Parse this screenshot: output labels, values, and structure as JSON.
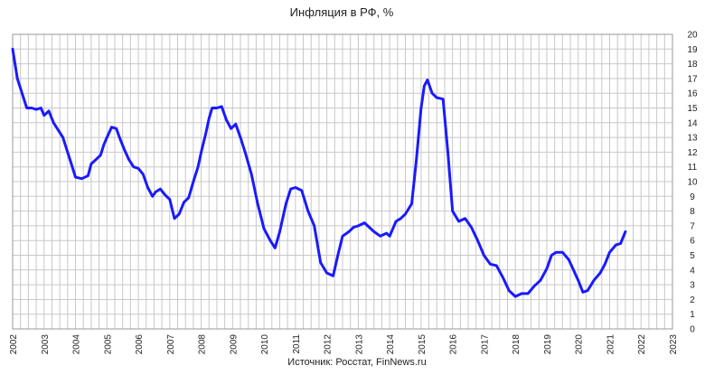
{
  "chart_data": {
    "type": "line",
    "title": "Инфляция в РФ, %",
    "source": "Источник: Росстат, FinNews.ru",
    "xlabel": "",
    "ylabel": "",
    "xlim": [
      2002,
      2023
    ],
    "ylim": [
      0,
      20
    ],
    "grid": true,
    "y_axis_side": "right",
    "x_ticks": [
      "2002",
      "2003",
      "2004",
      "2005",
      "2006",
      "2007",
      "2008",
      "2009",
      "2010",
      "2011",
      "2012",
      "2013",
      "2014",
      "2015",
      "2016",
      "2017",
      "2018",
      "2019",
      "2020",
      "2021",
      "2022",
      "2023"
    ],
    "y_ticks": [
      0,
      1,
      2,
      3,
      4,
      5,
      6,
      7,
      8,
      9,
      10,
      11,
      12,
      13,
      14,
      15,
      16,
      17,
      18,
      19,
      20
    ],
    "colors": {
      "series": "#1a1aff",
      "grid": "#c8c8c8"
    },
    "series": [
      {
        "x": [
          2002.0,
          2002.15,
          2002.3,
          2002.45,
          2002.6,
          2002.75,
          2002.9,
          2003.0,
          2003.15,
          2003.3,
          2003.45,
          2003.6,
          2003.75,
          2003.9,
          2004.0,
          2004.2,
          2004.4,
          2004.5,
          2004.65,
          2004.8,
          2004.9,
          2005.0,
          2005.15,
          2005.3,
          2005.4,
          2005.55,
          2005.7,
          2005.85,
          2006.0,
          2006.15,
          2006.3,
          2006.45,
          2006.55,
          2006.7,
          2006.85,
          2007.0,
          2007.15,
          2007.3,
          2007.45,
          2007.6,
          2007.75,
          2007.9,
          2008.0,
          2008.15,
          2008.25,
          2008.35,
          2008.5,
          2008.65,
          2008.8,
          2008.95,
          2009.1,
          2009.25,
          2009.4,
          2009.6,
          2009.8,
          2010.0,
          2010.2,
          2010.35,
          2010.5,
          2010.7,
          2010.85,
          2011.0,
          2011.2,
          2011.4,
          2011.6,
          2011.8,
          2012.0,
          2012.2,
          2012.35,
          2012.5,
          2012.7,
          2012.85,
          2013.0,
          2013.2,
          2013.35,
          2013.5,
          2013.7,
          2013.9,
          2014.0,
          2014.2,
          2014.35,
          2014.5,
          2014.7,
          2014.85,
          2015.0,
          2015.1,
          2015.2,
          2015.35,
          2015.5,
          2015.7,
          2015.85,
          2016.0,
          2016.2,
          2016.4,
          2016.6,
          2016.8,
          2017.0,
          2017.2,
          2017.4,
          2017.6,
          2017.8,
          2018.0,
          2018.2,
          2018.4,
          2018.6,
          2018.8,
          2019.0,
          2019.15,
          2019.3,
          2019.5,
          2019.7,
          2019.85,
          2020.0,
          2020.15,
          2020.3,
          2020.5,
          2020.7,
          2020.85,
          2021.0,
          2021.2,
          2021.35,
          2021.5
        ],
        "values": [
          19.0,
          17.0,
          16.0,
          15.0,
          15.0,
          14.9,
          15.0,
          14.5,
          14.8,
          14.0,
          13.5,
          13.0,
          12.0,
          11.0,
          10.3,
          10.2,
          10.4,
          11.2,
          11.5,
          11.8,
          12.5,
          13.0,
          13.7,
          13.6,
          13.0,
          12.2,
          11.5,
          11.0,
          10.9,
          10.5,
          9.6,
          9.0,
          9.3,
          9.5,
          9.1,
          8.8,
          7.5,
          7.8,
          8.6,
          8.9,
          10.0,
          11.0,
          12.0,
          13.3,
          14.3,
          15.0,
          15.0,
          15.1,
          14.2,
          13.6,
          13.9,
          13.0,
          12.0,
          10.5,
          8.5,
          6.8,
          6.0,
          5.5,
          6.6,
          8.5,
          9.5,
          9.6,
          9.4,
          8.0,
          7.0,
          4.5,
          3.8,
          3.6,
          5.0,
          6.3,
          6.6,
          6.9,
          7.0,
          7.2,
          6.9,
          6.6,
          6.3,
          6.5,
          6.3,
          7.3,
          7.5,
          7.8,
          8.5,
          11.5,
          15.0,
          16.5,
          16.9,
          16.0,
          15.7,
          15.6,
          12.0,
          8.0,
          7.3,
          7.5,
          6.9,
          6.0,
          5.0,
          4.4,
          4.3,
          3.5,
          2.6,
          2.2,
          2.4,
          2.4,
          2.9,
          3.3,
          4.1,
          5.0,
          5.2,
          5.2,
          4.7,
          4.0,
          3.3,
          2.5,
          2.6,
          3.3,
          3.8,
          4.4,
          5.2,
          5.7,
          5.8,
          6.6
        ]
      }
    ]
  }
}
